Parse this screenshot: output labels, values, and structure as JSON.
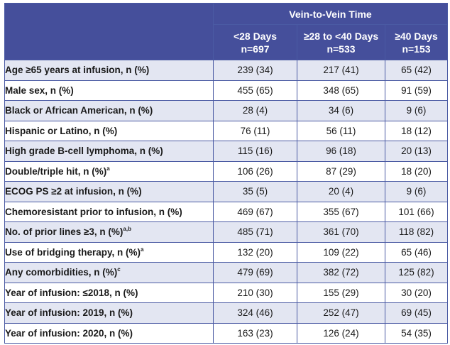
{
  "header": {
    "group_title": "Vein-to-Vein Time",
    "columns": [
      {
        "label": "<28 Days",
        "n": "n=697"
      },
      {
        "label": "≥28 to <40 Days",
        "n": "n=533"
      },
      {
        "label": "≥40 Days",
        "n": "n=153"
      }
    ]
  },
  "rows": [
    {
      "label": "Age ≥65 years at infusion, n (%)",
      "sup": "",
      "values": [
        "239 (34)",
        "217 (41)",
        "65 (42)"
      ]
    },
    {
      "label": "Male sex, n (%)",
      "sup": "",
      "values": [
        "455 (65)",
        "348 (65)",
        "91 (59)"
      ]
    },
    {
      "label": "Black or African American, n (%)",
      "sup": "",
      "values": [
        "28 (4)",
        "34 (6)",
        "9 (6)"
      ]
    },
    {
      "label": "Hispanic or Latino, n (%)",
      "sup": "",
      "values": [
        "76 (11)",
        "56 (11)",
        "18 (12)"
      ]
    },
    {
      "label": "High grade B-cell lymphoma, n (%)",
      "sup": "",
      "values": [
        "115 (16)",
        "96 (18)",
        "20 (13)"
      ]
    },
    {
      "label": "Double/triple hit, n (%)",
      "sup": "a",
      "values": [
        "106 (26)",
        "87 (29)",
        "18 (20)"
      ]
    },
    {
      "label": "ECOG PS ≥2 at infusion, n (%)",
      "sup": "",
      "values": [
        "35 (5)",
        "20 (4)",
        "9 (6)"
      ]
    },
    {
      "label": "Chemoresistant prior to infusion, n (%)",
      "sup": "",
      "values": [
        "469 (67)",
        "355 (67)",
        "101 (66)"
      ]
    },
    {
      "label": "No. of prior lines ≥3, n (%)",
      "sup": "a,b",
      "values": [
        "485 (71)",
        "361 (70)",
        "118 (82)"
      ]
    },
    {
      "label": "Use of bridging therapy, n (%)",
      "sup": "a",
      "values": [
        "132 (20)",
        "109 (22)",
        "65 (46)"
      ]
    },
    {
      "label": "Any comorbidities, n (%)",
      "sup": "c",
      "values": [
        "479 (69)",
        "382 (72)",
        "125 (82)"
      ]
    },
    {
      "label": "Year of infusion: ≤2018, n (%)",
      "sup": "",
      "values": [
        "210 (30)",
        "155 (29)",
        "30 (20)"
      ]
    },
    {
      "label": "Year of infusion: 2019, n (%)",
      "sup": "",
      "values": [
        "324 (46)",
        "252 (47)",
        "69 (45)"
      ]
    },
    {
      "label": "Year of infusion: 2020, n (%)",
      "sup": "",
      "values": [
        "163 (23)",
        "126 (24)",
        "54 (35)"
      ]
    }
  ]
}
